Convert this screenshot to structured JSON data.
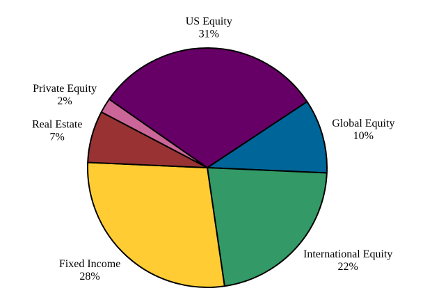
{
  "chart_data": {
    "type": "pie",
    "categories": [
      "Global Equity",
      "International Equity",
      "Fixed Income",
      "Real Estate",
      "Private Equity",
      "US Equity"
    ],
    "values": [
      10,
      22,
      28,
      7,
      2,
      31
    ],
    "value_labels": [
      "10%",
      "22%",
      "28%",
      "7%",
      "2%",
      "31%"
    ],
    "colors": [
      "#006699",
      "#339966",
      "#ffcc33",
      "#993333",
      "#cc6699",
      "#660066"
    ]
  }
}
